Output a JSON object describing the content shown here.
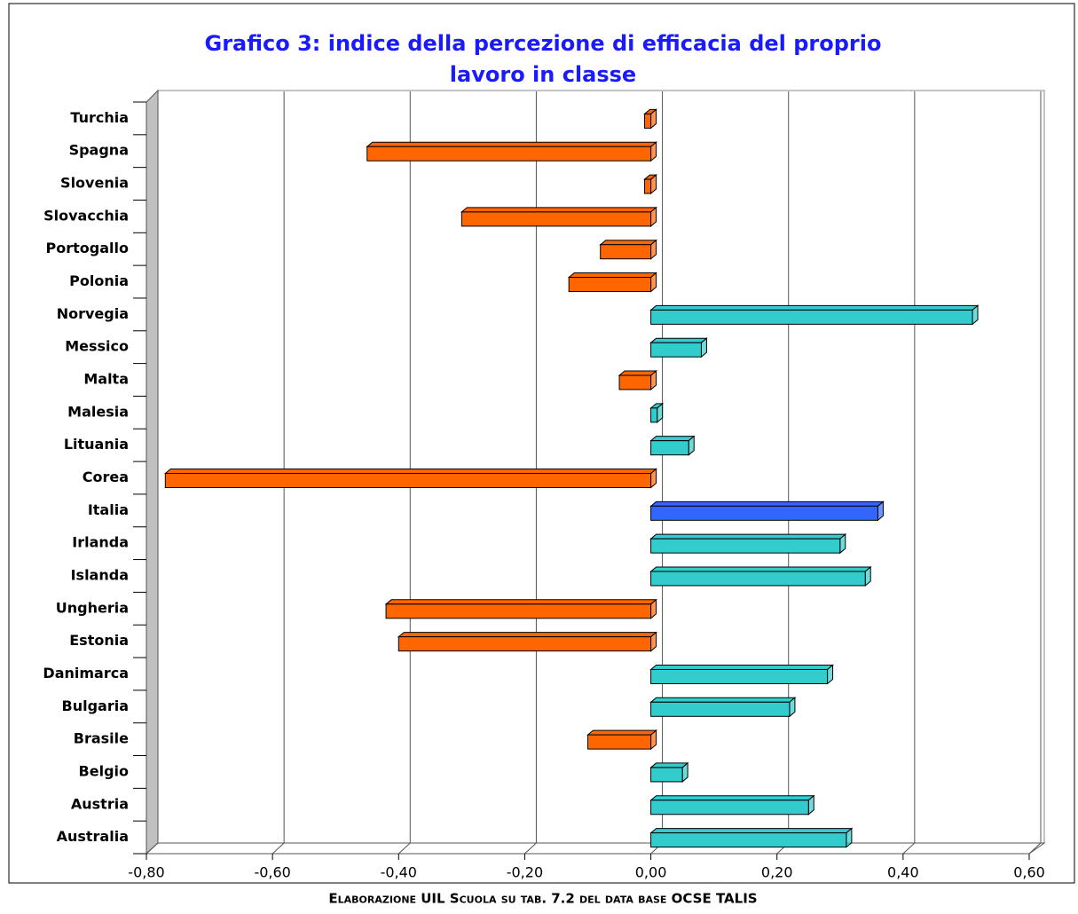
{
  "chart_data": {
    "type": "bar",
    "orientation": "horizontal",
    "title": [
      "Grafico 3: indice della percezione di efficacia del proprio",
      "lavoro in classe"
    ],
    "categories": [
      "Turchia",
      "Spagna",
      "Slovenia",
      "Slovacchia",
      "Portogallo",
      "Polonia",
      "Norvegia",
      "Messico",
      "Malta",
      "Malesia",
      "Lituania",
      "Corea",
      "Italia",
      "Irlanda",
      "Islanda",
      "Ungheria",
      "Estonia",
      "Danimarca",
      "Bulgaria",
      "Brasile",
      "Belgio",
      "Austria",
      "Australia"
    ],
    "values": [
      -0.01,
      -0.45,
      -0.01,
      -0.3,
      -0.08,
      -0.13,
      0.51,
      0.08,
      -0.05,
      0.01,
      0.06,
      -0.77,
      0.36,
      0.3,
      0.34,
      -0.42,
      -0.4,
      0.28,
      0.22,
      -0.1,
      0.05,
      0.25,
      0.31
    ],
    "colors": [
      "#ff6600",
      "#ff6600",
      "#ff6600",
      "#ff6600",
      "#ff6600",
      "#ff6600",
      "#33cccc",
      "#33cccc",
      "#ff6600",
      "#33cccc",
      "#33cccc",
      "#ff6600",
      "#3366ff",
      "#33cccc",
      "#33cccc",
      "#ff6600",
      "#ff6600",
      "#33cccc",
      "#33cccc",
      "#ff6600",
      "#33cccc",
      "#33cccc",
      "#33cccc"
    ],
    "xlim": [
      -0.8,
      0.6
    ],
    "xticks": [
      {
        "value": -0.8,
        "label": "-0,80"
      },
      {
        "value": -0.6,
        "label": "-0,60"
      },
      {
        "value": -0.4,
        "label": "-0,40"
      },
      {
        "value": -0.2,
        "label": "-0,20"
      },
      {
        "value": 0,
        "label": "0,00"
      },
      {
        "value": 0.2,
        "label": "0,20"
      },
      {
        "value": 0.4,
        "label": "0,40"
      },
      {
        "value": 0.6,
        "label": "0,60"
      }
    ],
    "grid": true,
    "source": "Elaborazione UIL Scuola su tab. 7.2 del data base OCSE TALIS"
  }
}
